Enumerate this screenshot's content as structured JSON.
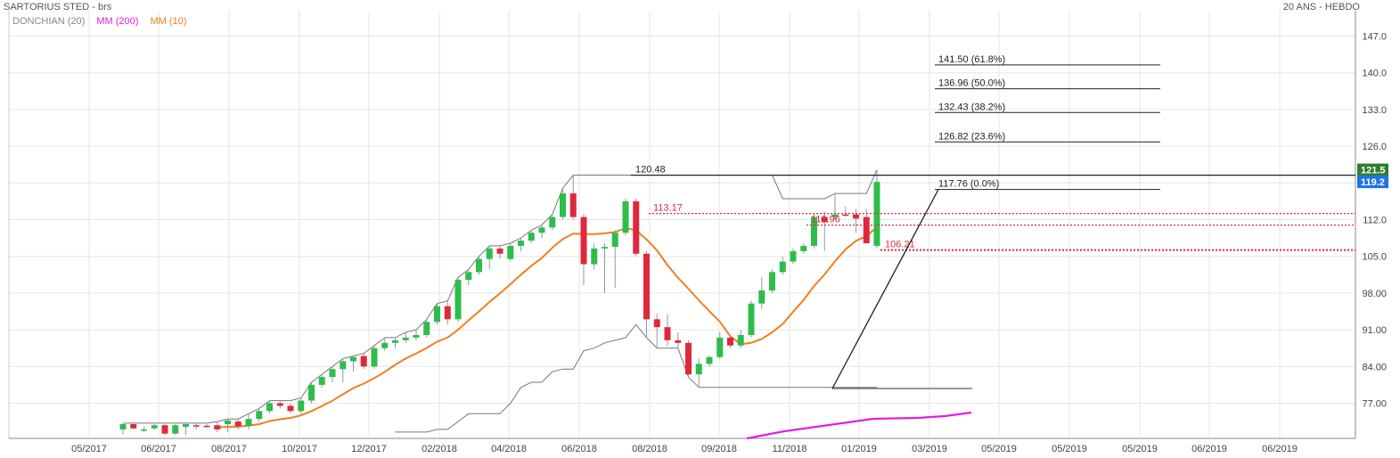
{
  "header": {
    "title": "SARTORIUS STED - brs",
    "period": "20 ANS - HEBDO"
  },
  "legend": [
    {
      "label": "DONCHIAN (20)",
      "color": "#888888"
    },
    {
      "label": "MM (200)",
      "color": "#e020e0"
    },
    {
      "label": "MM (10)",
      "color": "#f08020"
    }
  ],
  "chart_data": {
    "type": "candlestick",
    "y_axis": {
      "min": 71.0,
      "max": 148.0,
      "ticks": [
        "147.0",
        "140.0",
        "133.0",
        "126.0",
        "119.0",
        "112.0",
        "105.0",
        "98.00",
        "91.00",
        "84.00",
        "77.00"
      ],
      "tick_values": [
        147,
        140,
        133,
        126,
        119,
        112,
        105,
        98,
        91,
        84,
        77
      ]
    },
    "x_axis": {
      "labels": [
        "05/2017",
        "06/2017",
        "08/2017",
        "10/2017",
        "12/2017",
        "02/2018",
        "04/2018",
        "06/2018",
        "08/2018",
        "09/2018",
        "11/2018",
        "01/2019",
        "03/2019",
        "05/2019",
        "05/2019",
        "05/2019",
        "06/2019",
        "06/2019"
      ]
    },
    "price_tags": [
      {
        "value": 121.5,
        "label": "121.5",
        "color": "#2e7d32"
      },
      {
        "value": 119.2,
        "label": "119.2",
        "color": "#1e73e8"
      }
    ],
    "annotations": {
      "resistance": {
        "value": 120.48,
        "label": "120.48"
      },
      "fibonacci": [
        {
          "value": 141.5,
          "label": "141.50  (61.8%)"
        },
        {
          "value": 136.96,
          "label": "136.96  (50.0%)"
        },
        {
          "value": 132.43,
          "label": "132.43  (38.2%)"
        },
        {
          "value": 126.82,
          "label": "126.82  (23.6%)"
        },
        {
          "value": 117.76,
          "label": "117.76  (0.0%)"
        }
      ],
      "levels": [
        {
          "value": 113.17,
          "label": "113.17"
        },
        {
          "value": 110.96,
          "label": "110.96"
        },
        {
          "value": 106.21,
          "label": "106.21"
        }
      ],
      "trend_low": 79.8
    },
    "candles": [
      {
        "o": 72.0,
        "h": 73.2,
        "l": 71.0,
        "c": 73.0
      },
      {
        "o": 73.0,
        "h": 73.2,
        "l": 72.0,
        "c": 72.2
      },
      {
        "o": 72.0,
        "h": 72.5,
        "l": 71.5,
        "c": 72.0
      },
      {
        "o": 72.2,
        "h": 73.0,
        "l": 72.0,
        "c": 72.8
      },
      {
        "o": 72.8,
        "h": 73.0,
        "l": 71.0,
        "c": 71.2
      },
      {
        "o": 71.2,
        "h": 73.0,
        "l": 71.0,
        "c": 72.8
      },
      {
        "o": 72.5,
        "h": 73.2,
        "l": 71.0,
        "c": 73.0
      },
      {
        "o": 72.8,
        "h": 73.2,
        "l": 72.0,
        "c": 72.6
      },
      {
        "o": 72.7,
        "h": 73.0,
        "l": 72.3,
        "c": 72.6
      },
      {
        "o": 72.8,
        "h": 73.5,
        "l": 71.5,
        "c": 72.0
      },
      {
        "o": 73.0,
        "h": 74.0,
        "l": 71.5,
        "c": 73.7
      },
      {
        "o": 73.5,
        "h": 74.0,
        "l": 72.0,
        "c": 72.6
      },
      {
        "o": 72.6,
        "h": 75.0,
        "l": 72.0,
        "c": 74.0
      },
      {
        "o": 74.0,
        "h": 76.0,
        "l": 73.5,
        "c": 75.5
      },
      {
        "o": 75.5,
        "h": 77.5,
        "l": 75.0,
        "c": 77.0
      },
      {
        "o": 77.0,
        "h": 77.5,
        "l": 76.0,
        "c": 76.5
      },
      {
        "o": 76.5,
        "h": 77.0,
        "l": 75.0,
        "c": 75.5
      },
      {
        "o": 75.5,
        "h": 78.0,
        "l": 75.0,
        "c": 77.5
      },
      {
        "o": 77.5,
        "h": 81.0,
        "l": 77.0,
        "c": 80.5
      },
      {
        "o": 80.5,
        "h": 82.5,
        "l": 80.0,
        "c": 82.0
      },
      {
        "o": 82.0,
        "h": 84.0,
        "l": 81.0,
        "c": 83.5
      },
      {
        "o": 83.5,
        "h": 85.5,
        "l": 81.0,
        "c": 85.0
      },
      {
        "o": 85.0,
        "h": 86.0,
        "l": 83.0,
        "c": 85.8
      },
      {
        "o": 86.0,
        "h": 86.5,
        "l": 83.5,
        "c": 84.0
      },
      {
        "o": 84.0,
        "h": 88.0,
        "l": 83.5,
        "c": 87.5
      },
      {
        "o": 87.5,
        "h": 89.5,
        "l": 87.0,
        "c": 88.5
      },
      {
        "o": 88.5,
        "h": 89.5,
        "l": 87.5,
        "c": 89.0
      },
      {
        "o": 89.0,
        "h": 90.5,
        "l": 88.5,
        "c": 89.5
      },
      {
        "o": 89.5,
        "h": 91.0,
        "l": 89.0,
        "c": 90.0
      },
      {
        "o": 90.0,
        "h": 93.0,
        "l": 89.5,
        "c": 92.5
      },
      {
        "o": 92.5,
        "h": 96.0,
        "l": 92.0,
        "c": 95.5
      },
      {
        "o": 95.5,
        "h": 96.5,
        "l": 92.0,
        "c": 93.0
      },
      {
        "o": 93.0,
        "h": 101.0,
        "l": 92.5,
        "c": 100.5
      },
      {
        "o": 100.5,
        "h": 102.5,
        "l": 99.5,
        "c": 102.0
      },
      {
        "o": 102.0,
        "h": 105.0,
        "l": 101.5,
        "c": 104.5
      },
      {
        "o": 104.5,
        "h": 107.0,
        "l": 102.5,
        "c": 106.5
      },
      {
        "o": 106.5,
        "h": 107.0,
        "l": 104.5,
        "c": 105.5
      },
      {
        "o": 104.5,
        "h": 107.5,
        "l": 104.0,
        "c": 107.0
      },
      {
        "o": 107.0,
        "h": 108.5,
        "l": 106.0,
        "c": 108.0
      },
      {
        "o": 108.0,
        "h": 110.0,
        "l": 107.5,
        "c": 109.5
      },
      {
        "o": 109.5,
        "h": 111.0,
        "l": 108.5,
        "c": 110.5
      },
      {
        "o": 110.5,
        "h": 113.0,
        "l": 110.0,
        "c": 112.5
      },
      {
        "o": 112.5,
        "h": 118.0,
        "l": 112.0,
        "c": 117.0
      },
      {
        "o": 117.0,
        "h": 120.5,
        "l": 112.0,
        "c": 112.5
      },
      {
        "o": 112.5,
        "h": 113.0,
        "l": 99.5,
        "c": 103.5
      },
      {
        "o": 103.5,
        "h": 107.5,
        "l": 102.5,
        "c": 106.5
      },
      {
        "o": 106.5,
        "h": 107.5,
        "l": 98.0,
        "c": 106.8
      },
      {
        "o": 106.8,
        "h": 110.0,
        "l": 99.0,
        "c": 109.5
      },
      {
        "o": 109.5,
        "h": 116.0,
        "l": 109.0,
        "c": 115.5
      },
      {
        "o": 115.5,
        "h": 116.0,
        "l": 105.0,
        "c": 105.5
      },
      {
        "o": 105.5,
        "h": 106.0,
        "l": 89.5,
        "c": 93.0
      },
      {
        "o": 93.0,
        "h": 94.0,
        "l": 87.5,
        "c": 91.5
      },
      {
        "o": 91.5,
        "h": 94.0,
        "l": 88.0,
        "c": 89.0
      },
      {
        "o": 89.0,
        "h": 90.5,
        "l": 87.5,
        "c": 88.5
      },
      {
        "o": 88.5,
        "h": 89.0,
        "l": 82.0,
        "c": 82.5
      },
      {
        "o": 82.5,
        "h": 85.5,
        "l": 80.0,
        "c": 84.5
      },
      {
        "o": 84.5,
        "h": 86.0,
        "l": 84.0,
        "c": 85.8
      },
      {
        "o": 85.8,
        "h": 90.5,
        "l": 85.5,
        "c": 89.5
      },
      {
        "o": 89.5,
        "h": 90.0,
        "l": 87.5,
        "c": 88.0
      },
      {
        "o": 88.0,
        "h": 91.0,
        "l": 87.5,
        "c": 90.0
      },
      {
        "o": 90.0,
        "h": 96.5,
        "l": 89.5,
        "c": 96.0
      },
      {
        "o": 96.0,
        "h": 101.0,
        "l": 95.0,
        "c": 98.5
      },
      {
        "o": 98.5,
        "h": 102.5,
        "l": 98.0,
        "c": 102.0
      },
      {
        "o": 102.0,
        "h": 105.0,
        "l": 101.5,
        "c": 104.0
      },
      {
        "o": 104.0,
        "h": 106.5,
        "l": 103.5,
        "c": 106.0
      },
      {
        "o": 106.0,
        "h": 107.5,
        "l": 105.5,
        "c": 107.0
      },
      {
        "o": 107.0,
        "h": 113.0,
        "l": 106.5,
        "c": 112.5
      },
      {
        "o": 112.5,
        "h": 113.5,
        "l": 106.0,
        "c": 111.5
      },
      {
        "o": 112.5,
        "h": 117.0,
        "l": 112.0,
        "c": 113.0
      },
      {
        "o": 113.0,
        "h": 114.5,
        "l": 112.5,
        "c": 112.8
      },
      {
        "o": 113.0,
        "h": 114.0,
        "l": 109.5,
        "c": 112.2
      },
      {
        "o": 112.5,
        "h": 114.0,
        "l": 107.5,
        "c": 107.5
      },
      {
        "o": 107.0,
        "h": 121.5,
        "l": 106.5,
        "c": 119.2
      }
    ]
  }
}
